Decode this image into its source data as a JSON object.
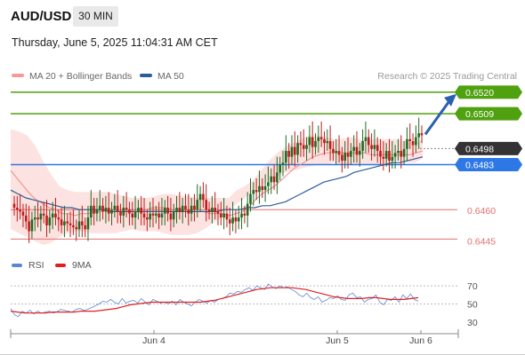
{
  "header": {
    "pair": "AUD/USD",
    "timeframe": "30 MIN",
    "datetime": "Thursday, June 5, 2025 11:04:31 AM CET"
  },
  "legend": [
    {
      "label": "MA 20 + Bollinger Bands",
      "color": "#f59a96"
    },
    {
      "label": "MA 50",
      "color": "#2e5c9a"
    }
  ],
  "credit": "Research © 2025 Trading Central",
  "rsi_legend": [
    {
      "label": "RSI",
      "color": "#5b86d6"
    },
    {
      "label": "9MA",
      "color": "#e02020"
    }
  ],
  "colors": {
    "resistance": "#4fa10f",
    "support": "#2e78e6",
    "pivot_support": "#e27070",
    "current": "#333333",
    "up": "#1f6b22",
    "down": "#c21a1a",
    "arrow": "#2b5fb1"
  },
  "chart_data": [
    {
      "type": "candlestick",
      "title": "AUD/USD",
      "timeframe": "30 MIN",
      "x_tick_labels": [
        "Jun 4",
        "Jun 5",
        "Jun 6"
      ],
      "ylim": [
        0.6437,
        0.6524
      ],
      "levels": [
        {
          "label": "0.6520",
          "value": 0.652,
          "role": "resistance"
        },
        {
          "label": "0.6509",
          "value": 0.6509,
          "role": "resistance"
        },
        {
          "label": "0.6498",
          "value": 0.6498,
          "role": "current"
        },
        {
          "label": "0.6483",
          "value": 0.6483,
          "role": "support"
        },
        {
          "label": "0.6460",
          "value": 0.646,
          "role": "pivot_support"
        },
        {
          "label": "0.6445",
          "value": 0.6445,
          "role": "pivot_support"
        }
      ],
      "target": 0.652,
      "series_close": [
        0.6461,
        0.646,
        0.6459,
        0.6457,
        0.6454,
        0.6449,
        0.6455,
        0.6456,
        0.6455,
        0.6458,
        0.6457,
        0.6452,
        0.6456,
        0.6458,
        0.6456,
        0.6455,
        0.6452,
        0.6454,
        0.6453,
        0.6452,
        0.6451,
        0.645,
        0.6454,
        0.6452,
        0.645,
        0.6456,
        0.6462,
        0.6458,
        0.646,
        0.6462,
        0.6459,
        0.6461,
        0.6458,
        0.646,
        0.6462,
        0.6459,
        0.6457,
        0.6461,
        0.646,
        0.6458,
        0.6456,
        0.6459,
        0.6461,
        0.6458,
        0.6456,
        0.6455,
        0.6458,
        0.6457,
        0.6458,
        0.6456,
        0.6458,
        0.6461,
        0.6458,
        0.6455,
        0.6459,
        0.6461,
        0.6459,
        0.6462,
        0.646,
        0.6458,
        0.6462,
        0.646,
        0.6465,
        0.6468,
        0.6465,
        0.646,
        0.6459,
        0.6461,
        0.6459,
        0.6458,
        0.6456,
        0.6458,
        0.6455,
        0.6453,
        0.6456,
        0.6454,
        0.6456,
        0.6458,
        0.6457,
        0.6463,
        0.6468,
        0.647,
        0.6469,
        0.6472,
        0.647,
        0.6472,
        0.6474,
        0.6477,
        0.6474,
        0.6479,
        0.6483,
        0.6484,
        0.649,
        0.6487,
        0.6492,
        0.6488,
        0.6494,
        0.6493,
        0.6491,
        0.6493,
        0.6497,
        0.6492,
        0.6495,
        0.6497,
        0.6496,
        0.6494,
        0.6495,
        0.6491,
        0.6489,
        0.649,
        0.6488,
        0.6485,
        0.6489,
        0.6487,
        0.649,
        0.6492,
        0.6488,
        0.649,
        0.6495,
        0.6497,
        0.6493,
        0.6491,
        0.6493,
        0.649,
        0.6487,
        0.6486,
        0.649,
        0.6485,
        0.6487,
        0.6489,
        0.649,
        0.6487,
        0.6491,
        0.6496,
        0.6495,
        0.6493,
        0.6497,
        0.6499,
        0.6498
      ],
      "ma20": [
        0.648,
        0.6476,
        0.6472,
        0.6468,
        0.6465,
        0.6463,
        0.6461,
        0.646,
        0.6458,
        0.6458,
        0.6457,
        0.6458,
        0.6458,
        0.6459,
        0.6459,
        0.646,
        0.646,
        0.6459,
        0.6459,
        0.646,
        0.646,
        0.646,
        0.6461,
        0.6461,
        0.6461,
        0.646,
        0.646,
        0.6459,
        0.6459,
        0.6459,
        0.6459,
        0.6458,
        0.6458,
        0.6458,
        0.6457,
        0.6458,
        0.6459,
        0.6461,
        0.6465,
        0.6468,
        0.647,
        0.6472,
        0.6475,
        0.6478,
        0.6481,
        0.6483,
        0.6485,
        0.6487,
        0.6488,
        0.6489,
        0.6489,
        0.6489,
        0.6489,
        0.6489,
        0.6489,
        0.6489,
        0.6488,
        0.6488,
        0.6488,
        0.6488,
        0.6488,
        0.6488,
        0.6488,
        0.6489,
        0.649
      ],
      "ma50": [
        0.647,
        0.6468,
        0.6466,
        0.6465,
        0.6464,
        0.6463,
        0.6462,
        0.6461,
        0.6461,
        0.646,
        0.646,
        0.646,
        0.646,
        0.6459,
        0.6459,
        0.6459,
        0.6459,
        0.6459,
        0.6459,
        0.6459,
        0.6459,
        0.6459,
        0.6459,
        0.6459,
        0.6459,
        0.6459,
        0.6459,
        0.6459,
        0.646,
        0.646,
        0.646,
        0.6461,
        0.6461,
        0.6462,
        0.6462,
        0.6463,
        0.6464,
        0.6466,
        0.6468,
        0.647,
        0.6472,
        0.6474,
        0.6475,
        0.6476,
        0.6477,
        0.6479,
        0.648,
        0.6481,
        0.6482,
        0.6483,
        0.6484,
        0.6484,
        0.6485,
        0.6486,
        0.6487
      ],
      "bollinger_upper": [
        0.6501,
        0.65,
        0.6498,
        0.6493,
        0.6485,
        0.6478,
        0.6472,
        0.647,
        0.6469,
        0.6469,
        0.6469,
        0.6469,
        0.6469,
        0.6468,
        0.6467,
        0.6466,
        0.6466,
        0.6466,
        0.6467,
        0.6468,
        0.6468,
        0.6467,
        0.6467,
        0.6466,
        0.6466,
        0.6466,
        0.6466,
        0.6466,
        0.647,
        0.6472,
        0.6475,
        0.648,
        0.6485,
        0.6489,
        0.6492,
        0.6494,
        0.6496,
        0.6498,
        0.6498,
        0.6497,
        0.6496,
        0.6496,
        0.6497,
        0.6496,
        0.6495,
        0.6496,
        0.6496,
        0.6496,
        0.6496,
        0.6495,
        0.6494,
        0.6496
      ],
      "bollinger_lower": [
        0.645,
        0.6448,
        0.6446,
        0.6444,
        0.6442,
        0.6443,
        0.6446,
        0.6448,
        0.6449,
        0.6449,
        0.6448,
        0.6448,
        0.6448,
        0.6448,
        0.6449,
        0.645,
        0.6449,
        0.6449,
        0.6449,
        0.6448,
        0.6447,
        0.6447,
        0.6447,
        0.6448,
        0.645,
        0.6453,
        0.6456,
        0.646,
        0.6463,
        0.6466,
        0.6469,
        0.6472,
        0.6475,
        0.6477,
        0.6479,
        0.648,
        0.6481,
        0.6482,
        0.6483,
        0.6483,
        0.6484,
        0.6483,
        0.6483,
        0.6483,
        0.6483,
        0.6483,
        0.6483,
        0.6484,
        0.6485,
        0.6484,
        0.6484,
        0.6486
      ]
    },
    {
      "type": "line",
      "series": [
        {
          "name": "RSI",
          "values": [
            45,
            38,
            36,
            42,
            40,
            43,
            39,
            42,
            40,
            41,
            42,
            40,
            41,
            44,
            43,
            42,
            41,
            44,
            45,
            43,
            44,
            46,
            48,
            50,
            53,
            52,
            55,
            52,
            50,
            56,
            51,
            53,
            54,
            51,
            56,
            52,
            49,
            55,
            53,
            51,
            52,
            50,
            53,
            49,
            55,
            52,
            50,
            48,
            52,
            55,
            53,
            51,
            54,
            52,
            55,
            56,
            58,
            62,
            61,
            64,
            63,
            66,
            68,
            65,
            70,
            68,
            66,
            72,
            69,
            67,
            70,
            68,
            69,
            66,
            64,
            60,
            58,
            62,
            57,
            55,
            58,
            52,
            54,
            57,
            56,
            59,
            55,
            54,
            60,
            62,
            57,
            58,
            52,
            55,
            56,
            60,
            52,
            49,
            55,
            54,
            58,
            52,
            60,
            56,
            61,
            55,
            53
          ]
        },
        {
          "name": "9MA",
          "values": [
            42,
            41,
            40,
            40,
            40,
            40,
            41,
            41,
            41,
            41,
            42,
            42,
            42,
            43,
            44,
            45,
            47,
            49,
            50,
            51,
            52,
            52,
            52,
            52,
            52,
            52,
            52,
            52,
            53,
            54,
            56,
            58,
            60,
            62,
            64,
            66,
            67,
            68,
            68,
            68,
            68,
            67,
            66,
            64,
            62,
            60,
            58,
            57,
            56,
            56,
            56,
            57,
            57,
            56,
            55,
            55,
            55,
            56,
            57
          ]
        }
      ],
      "y_tick_labels": [
        "70",
        "50",
        "30"
      ],
      "ylim": [
        20,
        80
      ]
    }
  ]
}
